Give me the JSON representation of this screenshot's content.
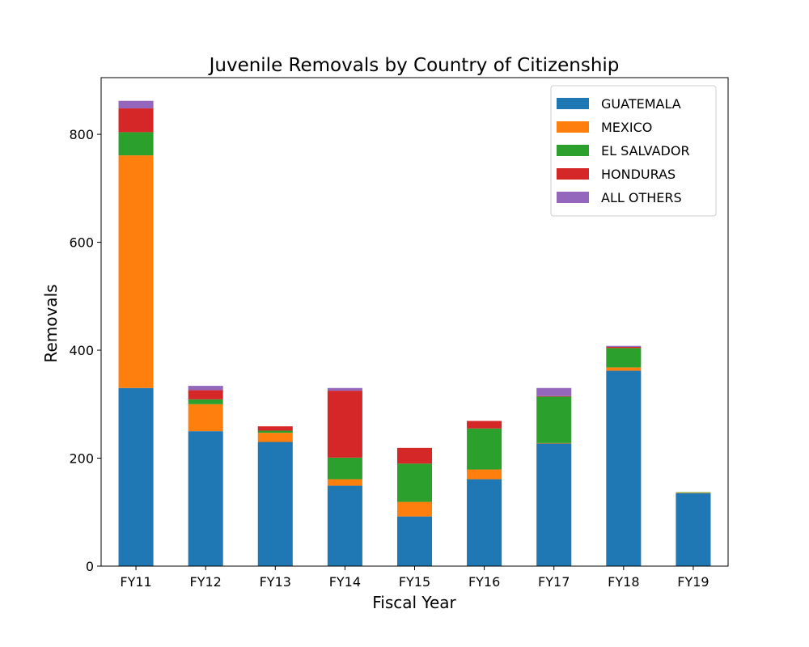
{
  "chart_data": {
    "type": "bar",
    "stacked": true,
    "title": "Juvenile Removals by Country of Citizenship",
    "xlabel": "Fiscal Year",
    "ylabel": "Removals",
    "categories": [
      "FY11",
      "FY12",
      "FY13",
      "FY14",
      "FY15",
      "FY16",
      "FY17",
      "FY18",
      "FY19"
    ],
    "series": [
      {
        "name": "GUATEMALA",
        "color": "#1f77b4",
        "values": [
          330,
          250,
          230,
          149,
          92,
          161,
          227,
          362,
          135
        ]
      },
      {
        "name": "MEXICO",
        "color": "#ff7f0e",
        "values": [
          431,
          50,
          17,
          12,
          27,
          18,
          1,
          6,
          1
        ]
      },
      {
        "name": "EL SALVADOR",
        "color": "#2ca02c",
        "values": [
          43,
          9,
          4,
          40,
          71,
          76,
          86,
          36,
          1
        ]
      },
      {
        "name": "HONDURAS",
        "color": "#d62728",
        "values": [
          44,
          17,
          8,
          124,
          29,
          14,
          1,
          2,
          0
        ]
      },
      {
        "name": "ALL OTHERS",
        "color": "#9467bd",
        "values": [
          14,
          8,
          0,
          5,
          0,
          0,
          15,
          2,
          0
        ]
      }
    ],
    "ylim": [
      0,
      905
    ],
    "yticks": [
      0,
      200,
      400,
      600,
      800
    ],
    "grid": false,
    "legend_position": "top-right"
  }
}
